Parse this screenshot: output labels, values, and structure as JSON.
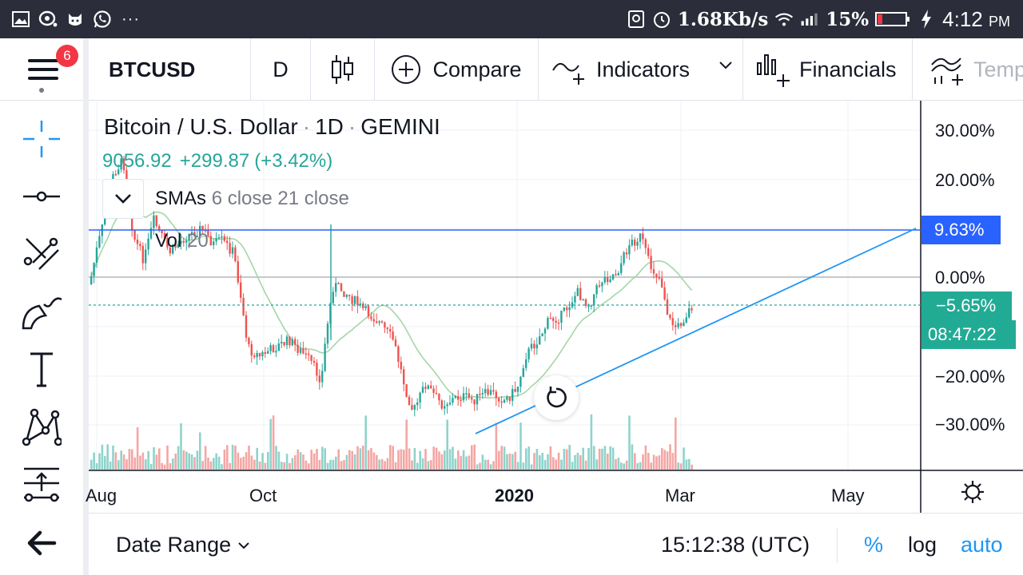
{
  "status_bar": {
    "network_speed": "1.68Kb/s",
    "battery": "15%",
    "time": "4:12",
    "ampm": "PM",
    "left_icons": [
      "gallery-icon",
      "chat-icon",
      "cat-icon",
      "whatsapp-icon"
    ],
    "overflow": "···"
  },
  "toolbar": {
    "menu_badge": "6",
    "symbol": "BTCUSD",
    "interval": "D",
    "compare_label": "Compare",
    "indicators_label": "Indicators",
    "financials_label": "Financials",
    "templates_label": "Temp"
  },
  "legend": {
    "title": "Bitcoin / U.S. Dollar",
    "interval": "1D",
    "exchange": "GEMINI",
    "last_price": "9056.92",
    "change": "+299.87",
    "change_pct": "(+3.42%)",
    "sma_name": "SMAs",
    "sma_params": "6 close 21 close",
    "vol_name": "Vol",
    "vol_param": "20"
  },
  "price_axis": {
    "labels": [
      "30.00%",
      "20.00%",
      "0.00%",
      "−20.00%",
      "−30.00%"
    ],
    "highlight_label": "9.63%",
    "current_label": "−5.65%",
    "countdown": "08:47:22"
  },
  "time_axis": {
    "labels": [
      "Aug",
      "Oct",
      "2020",
      "Mar",
      "May"
    ]
  },
  "bottom_bar": {
    "date_range": "Date Range",
    "clock": "15:12:38 (UTC)",
    "percent": "%",
    "log": "log",
    "auto": "auto"
  },
  "colors": {
    "up": "#26a69a",
    "down": "#ef5350",
    "sma": "#a5d6a7",
    "trendline": "#2196f3",
    "horizontal_line": "#2962ff"
  }
}
